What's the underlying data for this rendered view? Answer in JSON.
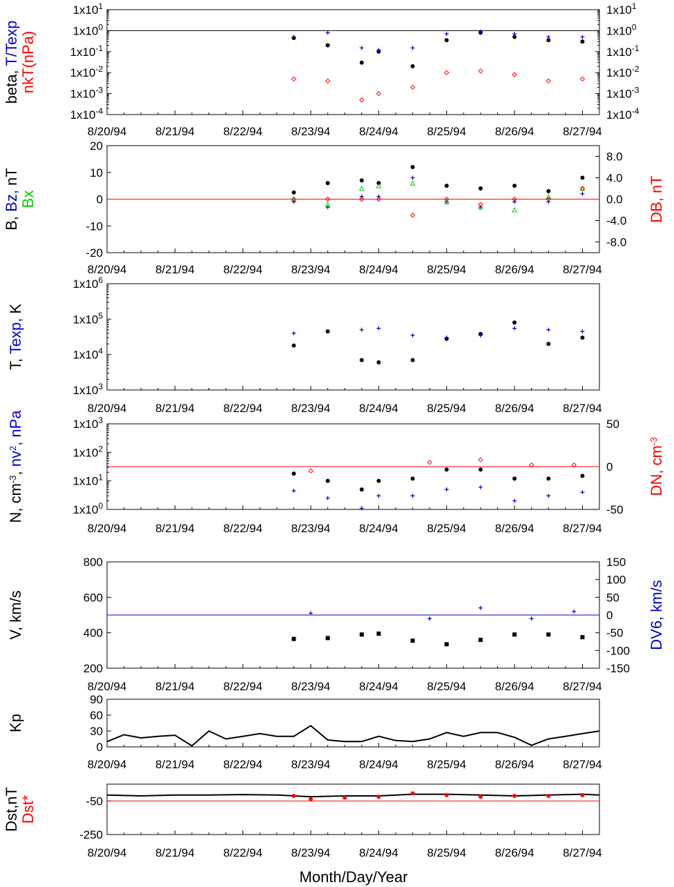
{
  "figure": {
    "xlabel": "Month/Day/Year",
    "date_ticks": [
      "8/20/94",
      "8/21/94",
      "8/22/94",
      "8/23/94",
      "8/24/94",
      "8/25/94",
      "8/26/94",
      "8/27/94"
    ],
    "colors": {
      "black": "#000000",
      "blue": "#0000cc",
      "red": "#ff0000",
      "green": "#00cc00"
    }
  },
  "chart_data": [
    {
      "id": "beta",
      "type": "scatter",
      "ylabel": [
        {
          "text": "beta, ",
          "color": "#000000"
        },
        {
          "text": "T/Texp",
          "color": "#0000cc"
        }
      ],
      "ylabel2": [
        {
          "text": "nkT(nPa)",
          "color": "#ff0000"
        }
      ],
      "y_scale": "log",
      "ylim": [
        0.0001,
        10
      ],
      "yticks": [
        {
          "v": 10,
          "base": "1x10",
          "exp": "1"
        },
        {
          "v": 1,
          "base": "1x10",
          "exp": "0"
        },
        {
          "v": 0.1,
          "base": "1x10",
          "exp": "-1"
        },
        {
          "v": 0.01,
          "base": "1x10",
          "exp": "-2"
        },
        {
          "v": 0.001,
          "base": "1x10",
          "exp": "-3"
        },
        {
          "v": 0.0001,
          "base": "1x10",
          "exp": "-4"
        }
      ],
      "right_ticks": "mirror",
      "reference_lines": [
        {
          "y": 1,
          "color": "#000000"
        }
      ],
      "series": [
        {
          "name": "beta",
          "marker": "dot",
          "color": "#000000",
          "x": [
            "1994-08-22 18:00",
            "1994-08-23 06:00",
            "1994-08-23 18:00",
            "1994-08-24 00:00",
            "1994-08-24 12:00",
            "1994-08-25 00:00",
            "1994-08-25 12:00",
            "1994-08-26 00:00",
            "1994-08-26 12:00",
            "1994-08-27 00:00"
          ],
          "y": [
            0.45,
            0.2,
            0.03,
            0.1,
            0.02,
            0.35,
            0.8,
            0.5,
            0.35,
            0.3
          ]
        },
        {
          "name": "T/Texp",
          "marker": "plus",
          "color": "#0000cc",
          "x": [
            "1994-08-22 18:00",
            "1994-08-23 06:00",
            "1994-08-23 18:00",
            "1994-08-24 00:00",
            "1994-08-24 12:00",
            "1994-08-25 00:00",
            "1994-08-25 12:00",
            "1994-08-26 00:00",
            "1994-08-26 12:00",
            "1994-08-27 00:00"
          ],
          "y": [
            0.5,
            0.8,
            0.15,
            0.12,
            0.15,
            0.7,
            0.9,
            0.7,
            0.5,
            0.5
          ]
        },
        {
          "name": "nkT(nPa)",
          "marker": "diamond",
          "color": "#ff0000",
          "x": [
            "1994-08-22 18:00",
            "1994-08-23 06:00",
            "1994-08-23 18:00",
            "1994-08-24 00:00",
            "1994-08-24 12:00",
            "1994-08-25 00:00",
            "1994-08-25 12:00",
            "1994-08-26 00:00",
            "1994-08-26 12:00",
            "1994-08-27 00:00"
          ],
          "y": [
            0.005,
            0.004,
            0.0005,
            0.001,
            0.002,
            0.01,
            0.012,
            0.008,
            0.004,
            0.005
          ]
        }
      ]
    },
    {
      "id": "field",
      "type": "scatter",
      "ylabel": [
        {
          "text": "B, ",
          "color": "#000000"
        },
        {
          "text": "Bz, ",
          "color": "#0000cc"
        },
        {
          "text": "nT",
          "color": "#000000"
        }
      ],
      "ylabel2": [
        {
          "text": "Bx",
          "color": "#00cc00"
        }
      ],
      "ylabel_right": [
        {
          "text": "DB, nT",
          "color": "#ff0000"
        }
      ],
      "ylim": [
        -20,
        20
      ],
      "yticks": [
        {
          "v": 20,
          "label": "20"
        },
        {
          "v": 10,
          "label": "10"
        },
        {
          "v": 0,
          "label": "0"
        },
        {
          "v": -10,
          "label": "-10"
        },
        {
          "v": -20,
          "label": "-20"
        }
      ],
      "right_ylim": [
        -10,
        10
      ],
      "right_yticks": [
        {
          "v": 8,
          "label": "8.0"
        },
        {
          "v": 4,
          "label": "4.0"
        },
        {
          "v": 0,
          "label": "0.0"
        },
        {
          "v": -4,
          "label": "-4.0"
        },
        {
          "v": -8,
          "label": "-8.0"
        }
      ],
      "reference_lines": [
        {
          "y": 0,
          "color": "#ff0000"
        }
      ],
      "series": [
        {
          "name": "B",
          "marker": "dot",
          "color": "#000000",
          "x": [
            "1994-08-22 18:00",
            "1994-08-23 06:00",
            "1994-08-23 18:00",
            "1994-08-24 00:00",
            "1994-08-24 12:00",
            "1994-08-25 00:00",
            "1994-08-25 12:00",
            "1994-08-26 00:00",
            "1994-08-26 12:00",
            "1994-08-27 00:00"
          ],
          "y": [
            2.5,
            6,
            7,
            6,
            12,
            5,
            4,
            5,
            3,
            8
          ]
        },
        {
          "name": "Bz",
          "marker": "plus",
          "color": "#0000cc",
          "x": [
            "1994-08-22 18:00",
            "1994-08-23 06:00",
            "1994-08-23 18:00",
            "1994-08-24 00:00",
            "1994-08-24 12:00",
            "1994-08-25 00:00",
            "1994-08-25 12:00",
            "1994-08-26 00:00",
            "1994-08-26 12:00",
            "1994-08-27 00:00"
          ],
          "y": [
            -1,
            -3,
            1,
            1,
            8,
            -1,
            -3,
            -1,
            -1,
            2
          ]
        },
        {
          "name": "Bx",
          "marker": "triangle",
          "color": "#00cc00",
          "x": [
            "1994-08-22 18:00",
            "1994-08-23 06:00",
            "1994-08-23 18:00",
            "1994-08-24 00:00",
            "1994-08-24 12:00",
            "1994-08-25 00:00",
            "1994-08-25 12:00",
            "1994-08-26 00:00",
            "1994-08-26 12:00",
            "1994-08-27 00:00"
          ],
          "y": [
            0,
            -2,
            4,
            5,
            6,
            -1,
            -3,
            -4,
            1,
            4
          ]
        },
        {
          "name": "DB",
          "marker": "diamond",
          "color": "#ff0000",
          "axis": "right",
          "x": [
            "1994-08-22 18:00",
            "1994-08-23 06:00",
            "1994-08-23 18:00",
            "1994-08-24 00:00",
            "1994-08-24 12:00",
            "1994-08-25 00:00",
            "1994-08-25 12:00",
            "1994-08-26 00:00",
            "1994-08-26 12:00",
            "1994-08-27 00:00"
          ],
          "y": [
            0,
            0,
            0,
            0,
            -3,
            0,
            -1,
            0,
            0,
            2
          ]
        }
      ]
    },
    {
      "id": "temperature",
      "type": "scatter",
      "ylabel": [
        {
          "text": "T, ",
          "color": "#000000"
        },
        {
          "text": "Texp, ",
          "color": "#0000cc"
        },
        {
          "text": "K",
          "color": "#000000"
        }
      ],
      "y_scale": "log",
      "ylim": [
        1000,
        1000000
      ],
      "yticks": [
        {
          "v": 1000000,
          "base": "1x10",
          "exp": "6"
        },
        {
          "v": 100000,
          "base": "1x10",
          "exp": "5"
        },
        {
          "v": 10000,
          "base": "1x10",
          "exp": "4"
        },
        {
          "v": 1000,
          "base": "1x10",
          "exp": "3"
        }
      ],
      "series": [
        {
          "name": "T",
          "marker": "dot",
          "color": "#000000",
          "x": [
            "1994-08-22 18:00",
            "1994-08-23 06:00",
            "1994-08-23 18:00",
            "1994-08-24 00:00",
            "1994-08-24 12:00",
            "1994-08-25 00:00",
            "1994-08-25 12:00",
            "1994-08-26 00:00",
            "1994-08-26 12:00",
            "1994-08-27 00:00"
          ],
          "y": [
            18000,
            45000,
            7000,
            6000,
            7000,
            28000,
            38000,
            80000,
            20000,
            30000
          ]
        },
        {
          "name": "Texp",
          "marker": "plus",
          "color": "#0000cc",
          "x": [
            "1994-08-22 18:00",
            "1994-08-23 06:00",
            "1994-08-23 18:00",
            "1994-08-24 00:00",
            "1994-08-24 12:00",
            "1994-08-25 00:00",
            "1994-08-25 12:00",
            "1994-08-26 00:00",
            "1994-08-26 12:00",
            "1994-08-27 00:00"
          ],
          "y": [
            40000,
            45000,
            50000,
            55000,
            35000,
            30000,
            35000,
            55000,
            50000,
            45000
          ]
        }
      ]
    },
    {
      "id": "density",
      "type": "scatter",
      "ylabel": [
        {
          "text": "N, cm",
          "color": "#000000"
        },
        {
          "text": "-3",
          "color": "#000000",
          "sup": true
        },
        {
          "text": ", ",
          "color": "#000000"
        },
        {
          "text": "nv",
          "color": "#0000cc"
        },
        {
          "text": "2",
          "color": "#0000cc",
          "sup": true
        },
        {
          "text": ", nPa",
          "color": "#0000cc"
        }
      ],
      "ylabel_right": [
        {
          "text": "DN, cm",
          "color": "#ff0000"
        },
        {
          "text": "-3",
          "color": "#ff0000",
          "sup": true
        }
      ],
      "y_scale": "log",
      "ylim": [
        1,
        1000
      ],
      "yticks": [
        {
          "v": 1000,
          "base": "1x10",
          "exp": "3"
        },
        {
          "v": 100,
          "base": "1x10",
          "exp": "2"
        },
        {
          "v": 10,
          "base": "1x10",
          "exp": "1"
        },
        {
          "v": 1,
          "base": "1x10",
          "exp": "0"
        }
      ],
      "right_ylim": [
        -50,
        50
      ],
      "right_yticks": [
        {
          "v": 50,
          "label": "50"
        },
        {
          "v": 0,
          "label": "0"
        },
        {
          "v": -50,
          "label": "-50"
        }
      ],
      "reference_lines": [
        {
          "y": 0,
          "color": "#ff0000",
          "axis": "right"
        }
      ],
      "series": [
        {
          "name": "N",
          "marker": "dot",
          "color": "#000000",
          "x": [
            "1994-08-22 18:00",
            "1994-08-23 06:00",
            "1994-08-23 18:00",
            "1994-08-24 00:00",
            "1994-08-24 12:00",
            "1994-08-25 00:00",
            "1994-08-25 12:00",
            "1994-08-26 00:00",
            "1994-08-26 12:00",
            "1994-08-27 00:00"
          ],
          "y": [
            18,
            10,
            5,
            10,
            12,
            25,
            25,
            12,
            12,
            15
          ]
        },
        {
          "name": "nv2",
          "marker": "plus",
          "color": "#0000cc",
          "x": [
            "1994-08-22 18:00",
            "1994-08-23 06:00",
            "1994-08-23 18:00",
            "1994-08-24 00:00",
            "1994-08-24 12:00",
            "1994-08-25 00:00",
            "1994-08-25 12:00",
            "1994-08-26 00:00",
            "1994-08-26 12:00",
            "1994-08-27 00:00"
          ],
          "y": [
            4.5,
            2.5,
            1.1,
            3,
            3,
            5,
            6,
            2,
            3,
            4
          ]
        },
        {
          "name": "DN",
          "marker": "diamond",
          "color": "#ff0000",
          "axis": "right",
          "x": [
            "1994-08-23 00:00",
            "1994-08-24 18:00",
            "1994-08-25 12:00",
            "1994-08-26 06:00",
            "1994-08-26 21:00"
          ],
          "y": [
            -5,
            5,
            8,
            2,
            2
          ]
        }
      ]
    },
    {
      "id": "velocity",
      "type": "scatter",
      "ylabel": [
        {
          "text": "V, km/s",
          "color": "#000000"
        }
      ],
      "ylabel_right": [
        {
          "text": "DV6, km/s",
          "color": "#0000cc"
        }
      ],
      "ylim": [
        200,
        800
      ],
      "yticks": [
        {
          "v": 800,
          "label": "800"
        },
        {
          "v": 600,
          "label": "600"
        },
        {
          "v": 400,
          "label": "400"
        },
        {
          "v": 200,
          "label": "200"
        }
      ],
      "right_ylim": [
        -150,
        150
      ],
      "right_yticks": [
        {
          "v": 150,
          "label": "150"
        },
        {
          "v": 100,
          "label": "100"
        },
        {
          "v": 50,
          "label": "50"
        },
        {
          "v": 0,
          "label": "0"
        },
        {
          "v": -50,
          "label": "-50"
        },
        {
          "v": -100,
          "label": "-100"
        },
        {
          "v": -150,
          "label": "-150"
        }
      ],
      "reference_lines": [
        {
          "y": 0,
          "color": "#0000cc",
          "axis": "right"
        }
      ],
      "series": [
        {
          "name": "V",
          "marker": "square",
          "color": "#000000",
          "x": [
            "1994-08-22 18:00",
            "1994-08-23 06:00",
            "1994-08-23 18:00",
            "1994-08-24 00:00",
            "1994-08-24 12:00",
            "1994-08-25 00:00",
            "1994-08-25 12:00",
            "1994-08-26 00:00",
            "1994-08-26 12:00",
            "1994-08-27 00:00"
          ],
          "y": [
            365,
            370,
            390,
            395,
            355,
            335,
            360,
            390,
            390,
            375
          ]
        },
        {
          "name": "DV6",
          "marker": "plus",
          "color": "#0000cc",
          "axis": "right",
          "x": [
            "1994-08-23 00:00",
            "1994-08-24 18:00",
            "1994-08-25 12:00",
            "1994-08-26 06:00",
            "1994-08-26 21:00"
          ],
          "y": [
            5,
            -10,
            20,
            -10,
            10
          ]
        }
      ]
    },
    {
      "id": "kp",
      "type": "line",
      "ylabel": [
        {
          "text": "Kp",
          "color": "#000000"
        }
      ],
      "ylim": [
        0,
        90
      ],
      "yticks": [
        {
          "v": 90,
          "label": "90"
        },
        {
          "v": 60,
          "label": "60"
        },
        {
          "v": 30,
          "label": "30"
        },
        {
          "v": 0,
          "label": "0"
        }
      ],
      "series": [
        {
          "name": "Kp",
          "color": "#000000",
          "x": [
            "1994-08-20 00:00",
            "1994-08-20 06:00",
            "1994-08-20 12:00",
            "1994-08-20 18:00",
            "1994-08-21 00:00",
            "1994-08-21 06:00",
            "1994-08-21 12:00",
            "1994-08-21 18:00",
            "1994-08-22 00:00",
            "1994-08-22 06:00",
            "1994-08-22 12:00",
            "1994-08-22 18:00",
            "1994-08-23 00:00",
            "1994-08-23 06:00",
            "1994-08-23 12:00",
            "1994-08-23 18:00",
            "1994-08-24 00:00",
            "1994-08-24 06:00",
            "1994-08-24 12:00",
            "1994-08-24 18:00",
            "1994-08-25 00:00",
            "1994-08-25 06:00",
            "1994-08-25 12:00",
            "1994-08-25 18:00",
            "1994-08-26 00:00",
            "1994-08-26 06:00",
            "1994-08-26 12:00",
            "1994-08-26 18:00",
            "1994-08-27 00:00",
            "1994-08-27 06:00"
          ],
          "y": [
            10,
            23,
            17,
            20,
            22,
            2,
            30,
            15,
            20,
            25,
            20,
            20,
            40,
            13,
            10,
            10,
            20,
            12,
            10,
            15,
            27,
            20,
            27,
            27,
            18,
            3,
            15,
            20,
            25,
            30
          ]
        }
      ]
    },
    {
      "id": "dst",
      "type": "line",
      "ylabel": [
        {
          "text": "Dst,nT",
          "color": "#000000"
        }
      ],
      "ylabel2": [
        {
          "text": "Dst*",
          "color": "#ff0000"
        }
      ],
      "ylim": [
        -250,
        50
      ],
      "yticks": [
        {
          "v": -50,
          "label": "-50"
        },
        {
          "v": -250,
          "label": "-250"
        }
      ],
      "reference_lines": [
        {
          "y": -50,
          "color": "#ff0000"
        }
      ],
      "series": [
        {
          "name": "Dst",
          "color": "#000000",
          "x": [
            "1994-08-20 00:00",
            "1994-08-20 12:00",
            "1994-08-21 00:00",
            "1994-08-21 12:00",
            "1994-08-22 00:00",
            "1994-08-22 12:00",
            "1994-08-23 00:00",
            "1994-08-23 12:00",
            "1994-08-24 00:00",
            "1994-08-24 12:00",
            "1994-08-25 00:00",
            "1994-08-25 12:00",
            "1994-08-26 00:00",
            "1994-08-26 12:00",
            "1994-08-27 00:00",
            "1994-08-27 06:00"
          ],
          "y": [
            -15,
            -20,
            -15,
            -15,
            -12,
            -15,
            -25,
            -20,
            -20,
            -10,
            -10,
            -15,
            -20,
            -15,
            -10,
            -15
          ]
        },
        {
          "name": "Dst*",
          "marker": "dot",
          "color": "#ff0000",
          "x": [
            "1994-08-22 18:00",
            "1994-08-23 00:00",
            "1994-08-23 12:00",
            "1994-08-24 00:00",
            "1994-08-24 12:00",
            "1994-08-25 00:00",
            "1994-08-25 12:00",
            "1994-08-26 00:00",
            "1994-08-26 12:00",
            "1994-08-27 00:00"
          ],
          "y": [
            -20,
            -40,
            -30,
            -25,
            -5,
            -15,
            -25,
            -20,
            -20,
            -15
          ]
        }
      ]
    }
  ]
}
